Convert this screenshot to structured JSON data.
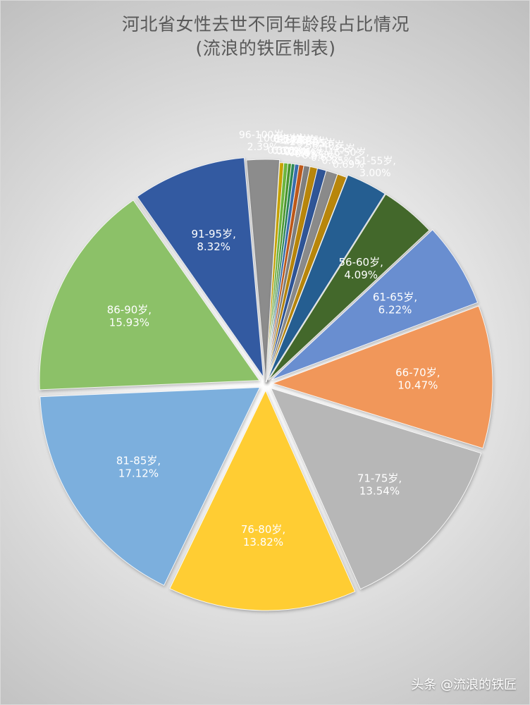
{
  "chart_data": {
    "type": "pie",
    "title": "河北省女性去世不同年龄段占比情况",
    "subtitle": "(流浪的铁匠制表)",
    "label_format": "{name},\n{pct}",
    "legend": "none",
    "slices": [
      {
        "name": "96-100岁",
        "value": 2.39,
        "label": "2.39%",
        "color": "#8c8c8c"
      },
      {
        "name": "100岁以上",
        "value": 0.3,
        "label": "0.30%",
        "color": "#c9a400"
      },
      {
        "name": "0-5岁",
        "value": 0.3,
        "label": "0.30%",
        "color": "#6fb93f"
      },
      {
        "name": "6-10岁",
        "value": 0.25,
        "label": "0.25%",
        "color": "#4d9a2f"
      },
      {
        "name": "11-15岁",
        "value": 0.25,
        "label": "0.25%",
        "color": "#2e8b57"
      },
      {
        "name": "16-20岁",
        "value": 0.3,
        "label": "0.30%",
        "color": "#3a6fb0"
      },
      {
        "name": "21-25岁",
        "value": 0.35,
        "label": "0.35%",
        "color": "#c05a1a"
      },
      {
        "name": "26-30岁",
        "value": 0.45,
        "label": "0.45%",
        "color": "#7f7f7f"
      },
      {
        "name": "31-35岁",
        "value": 0.55,
        "label": "0.55%",
        "color": "#b8860b"
      },
      {
        "name": "36-40岁",
        "value": 0.65,
        "label": "0.65%",
        "color": "#2f5597"
      },
      {
        "name": "41-45岁",
        "value": 0.85,
        "label": "0.85%",
        "color": "#8a8a8a"
      },
      {
        "name": "46-50岁",
        "value": 0.69,
        "label": "0.69%",
        "color": "#b8860b"
      },
      {
        "name": "51-55岁",
        "value": 3.0,
        "label": "3.00%",
        "color": "#255e91"
      },
      {
        "name": "56-60岁",
        "value": 4.09,
        "label": "4.09%",
        "color": "#43682b"
      },
      {
        "name": "61-65岁",
        "value": 6.22,
        "label": "6.22%",
        "color": "#698ed0"
      },
      {
        "name": "66-70岁",
        "value": 10.47,
        "label": "10.47%",
        "color": "#f1975a"
      },
      {
        "name": "71-75岁",
        "value": 13.54,
        "label": "13.54%",
        "color": "#b7b7b7"
      },
      {
        "name": "76-80岁",
        "value": 13.82,
        "label": "13.82%",
        "color": "#ffcd33"
      },
      {
        "name": "81-85岁",
        "value": 17.12,
        "label": "17.12%",
        "color": "#7cafdd"
      },
      {
        "name": "86-90岁",
        "value": 15.93,
        "label": "15.93%",
        "color": "#8cc168"
      },
      {
        "name": "91-95岁",
        "value": 8.32,
        "label": "8.32%",
        "color": "#335aa1"
      }
    ]
  },
  "watermark": "头条 @流浪的铁匠"
}
